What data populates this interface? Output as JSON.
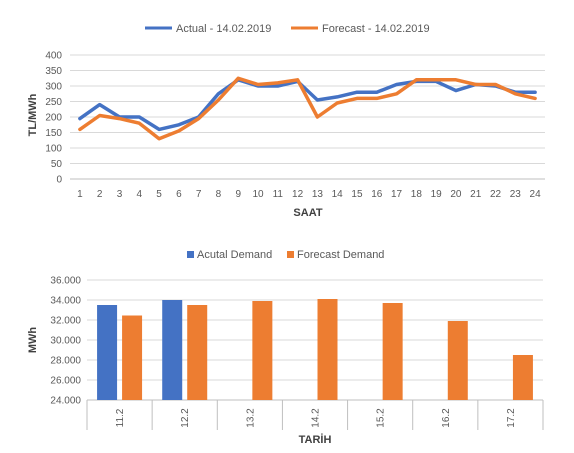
{
  "colors": {
    "actual": "#4472C4",
    "forecast": "#ED7D31",
    "grid": "#D9D9D9",
    "axis": "#BFBFBF"
  },
  "chart_data": [
    {
      "type": "line",
      "title": "",
      "xlabel": "SAAT",
      "ylabel": "TL/MWh",
      "x": [
        "1",
        "2",
        "3",
        "4",
        "5",
        "6",
        "7",
        "8",
        "9",
        "10",
        "11",
        "12",
        "13",
        "14",
        "15",
        "16",
        "17",
        "18",
        "19",
        "20",
        "21",
        "22",
        "23",
        "24"
      ],
      "ylim": [
        0,
        400
      ],
      "yticks": [
        "0",
        "50",
        "100",
        "150",
        "200",
        "250",
        "300",
        "350",
        "400"
      ],
      "grid": true,
      "legend": "top",
      "series": [
        {
          "name": "Actual - 14.02.2019",
          "color": "#4472C4",
          "values": [
            195,
            240,
            200,
            200,
            160,
            175,
            200,
            275,
            320,
            300,
            300,
            315,
            255,
            265,
            280,
            280,
            305,
            315,
            315,
            285,
            305,
            300,
            280,
            280
          ]
        },
        {
          "name": "Forecast - 14.02.2019",
          "color": "#ED7D31",
          "values": [
            160,
            205,
            195,
            180,
            130,
            155,
            195,
            255,
            325,
            305,
            310,
            320,
            200,
            245,
            260,
            260,
            275,
            320,
            320,
            320,
            305,
            305,
            275,
            260
          ]
        }
      ]
    },
    {
      "type": "bar",
      "title": "",
      "xlabel": "TARİH",
      "ylabel": "MWh",
      "categories": [
        "11.2",
        "12.2",
        "13.2",
        "14.2",
        "15.2",
        "16.2",
        "17.2"
      ],
      "ylim": [
        24000,
        36000
      ],
      "yticks": [
        "24.000",
        "26.000",
        "28.000",
        "30.000",
        "32.000",
        "34.000",
        "36.000"
      ],
      "grid": true,
      "legend": "top",
      "series": [
        {
          "name": "Acutal Demand",
          "color": "#4472C4",
          "values": [
            33500,
            34000,
            null,
            null,
            null,
            null,
            null
          ]
        },
        {
          "name": "Forecast Demand",
          "color": "#ED7D31",
          "values": [
            32450,
            33500,
            33900,
            34100,
            33700,
            31900,
            28500
          ]
        }
      ]
    }
  ]
}
